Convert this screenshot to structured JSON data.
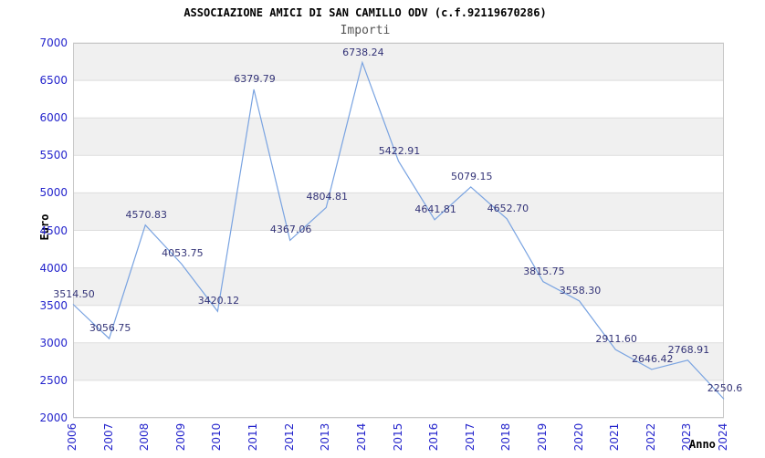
{
  "chart_data": {
    "type": "line",
    "title": "ASSOCIAZIONE AMICI DI SAN CAMILLO ODV (c.f.92119670286)",
    "subtitle": "Importi",
    "xlabel": "Anno",
    "ylabel": "Euro",
    "categories": [
      "2006",
      "2007",
      "2008",
      "2009",
      "2010",
      "2011",
      "2012",
      "2013",
      "2014",
      "2015",
      "2016",
      "2017",
      "2018",
      "2019",
      "2020",
      "2021",
      "2022",
      "2023",
      "2024"
    ],
    "values": [
      3514.5,
      3056.75,
      4570.83,
      4053.75,
      3420.12,
      6379.79,
      4367.06,
      4804.81,
      6738.24,
      5422.91,
      4641.81,
      5079.15,
      4652.7,
      3815.75,
      3558.3,
      2911.6,
      2646.42,
      2768.91,
      2250.6
    ],
    "point_labels": [
      "3514.50",
      "3056.75",
      "4570.83",
      "4053.75",
      "3420.12",
      "6379.79",
      "4367.06",
      "4804.81",
      "6738.24",
      "5422.91",
      "4641.81",
      "5079.15",
      "4652.70",
      "3815.75",
      "3558.30",
      "2911.60",
      "2646.42",
      "2768.91",
      "2250.6"
    ],
    "ylim": [
      2000,
      7000
    ],
    "ytick_step": 500,
    "yticks": [
      7000,
      6500,
      6000,
      5500,
      5000,
      4500,
      4000,
      3500,
      3000,
      2500,
      2000
    ],
    "grid": "alternating-horizontal-bands",
    "legend_position": "none",
    "colors": {
      "line": "#79a3e1",
      "tick_label": "#2424cc",
      "point_label": "#333377",
      "band": "#f0f0f0",
      "gridline": "#dddddd",
      "plot_border": "#c8c8c8",
      "title": "#000000",
      "subtitle": "#555555",
      "axis_title": "#000000",
      "background": "#ffffff"
    }
  }
}
